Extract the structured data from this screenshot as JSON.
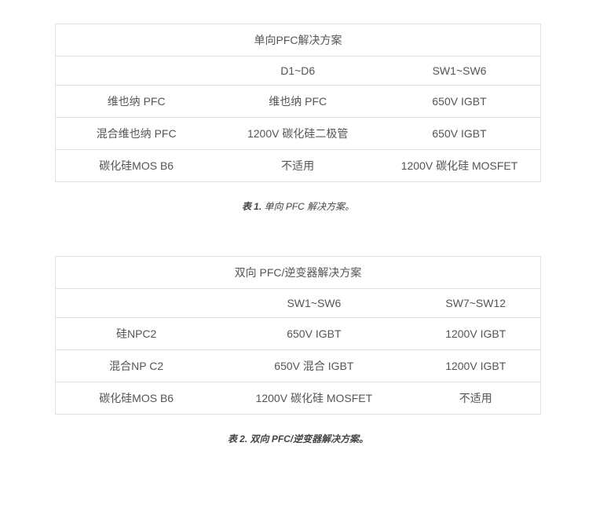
{
  "tables": [
    {
      "title": "单向PFC解决方案",
      "columns": [
        "",
        "D1~D6",
        "SW1~SW6"
      ],
      "rows": [
        [
          "维也纳 PFC",
          "维也纳 PFC",
          "650V IGBT"
        ],
        [
          "混合维也纳 PFC",
          "1200V 碳化硅二极管",
          "650V IGBT"
        ],
        [
          "碳化硅MOS B6",
          "不适用",
          "1200V 碳化硅 MOSFET"
        ]
      ],
      "column_widths": [
        "33.3%",
        "33.3%",
        "33.4%"
      ],
      "caption_label": "表 1.",
      "caption_text": " 单向 PFC 解决方案。"
    },
    {
      "title": "双向 PFC/逆变器解决方案",
      "columns": [
        "",
        "SW1~SW6",
        "SW7~SW12"
      ],
      "rows": [
        [
          "硅NPC2",
          "650V IGBT",
          "1200V IGBT"
        ],
        [
          "混合NP C2",
          "650V 混合 IGBT",
          "1200V IGBT"
        ],
        [
          "碳化硅MOS B6",
          "1200V 碳化硅 MOSFET",
          "不适用"
        ]
      ],
      "column_widths": [
        "33.3%",
        "40%",
        "26.7%"
      ],
      "caption_label": "表 2.",
      "caption_text": " 双向 PFC/逆变器解决方案。"
    }
  ],
  "colors": {
    "border": "#e0e0e0",
    "text": "#555555",
    "caption": "#444444",
    "background": "#ffffff"
  },
  "typography": {
    "table_fontsize": 14,
    "caption_fontsize": 12
  }
}
